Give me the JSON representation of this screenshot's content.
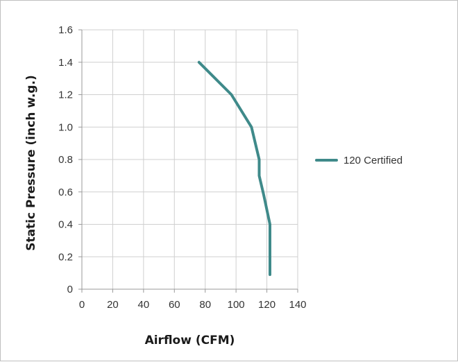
{
  "chart_data": {
    "type": "line",
    "title": "",
    "xlabel": "Airflow (CFM)",
    "ylabel": "Static Pressure (inch w.g.)",
    "xlim": [
      0,
      140
    ],
    "ylim": [
      0,
      1.6
    ],
    "x_ticks": [
      "0",
      "20",
      "40",
      "60",
      "80",
      "100",
      "120",
      "140"
    ],
    "y_ticks": [
      "0",
      "0.2",
      "0.4",
      "0.6",
      "0.8",
      "1.0",
      "1.2",
      "1.4",
      "1.6"
    ],
    "grid": true,
    "legend_position": "right",
    "series": [
      {
        "name": "120 Certified",
        "color": "#3f8a8a",
        "points": [
          {
            "x": 76,
            "y": 1.4
          },
          {
            "x": 97,
            "y": 1.2
          },
          {
            "x": 110,
            "y": 1.0
          },
          {
            "x": 115,
            "y": 0.8
          },
          {
            "x": 115,
            "y": 0.7
          },
          {
            "x": 118,
            "y": 0.58
          },
          {
            "x": 122,
            "y": 0.4
          },
          {
            "x": 122,
            "y": 0.2
          },
          {
            "x": 122,
            "y": 0.09
          }
        ]
      }
    ]
  }
}
